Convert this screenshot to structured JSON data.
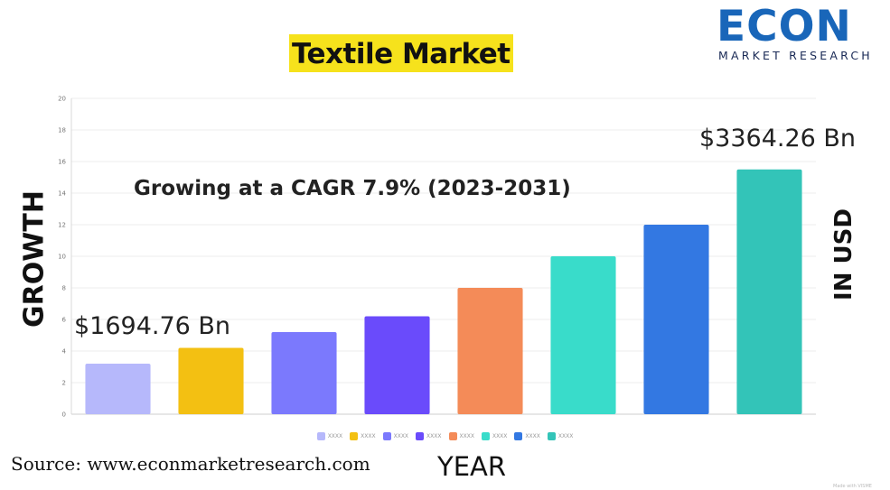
{
  "header": {
    "title": "Textile Market",
    "logo_word": "ECON",
    "logo_sub": "MARKET RESEARCH"
  },
  "chart_data": {
    "type": "bar",
    "title": "Textile Market",
    "subtitle": "Growing at a CAGR 7.9% (2023-2031)",
    "ylabel": "GROWTH",
    "y2label": "IN USD",
    "xlabel": "YEAR",
    "ylim": [
      0,
      20
    ],
    "yticks": [
      0,
      2,
      4,
      6,
      8,
      10,
      12,
      14,
      16,
      18,
      20
    ],
    "grid": true,
    "categories": [
      "XXXX",
      "XXXX",
      "XXXX",
      "XXXX",
      "XXXX",
      "XXXX",
      "XXXX",
      "XXXX"
    ],
    "values": [
      3.2,
      4.2,
      5.2,
      6.2,
      8.0,
      10.0,
      12.0,
      15.5
    ],
    "colors": [
      "#b6b8fb",
      "#f3c012",
      "#7b79fd",
      "#6a4bfb",
      "#f48b58",
      "#39dcca",
      "#3378e2",
      "#33c4b8"
    ],
    "annotations": [
      {
        "text": "$1694.76 Bn",
        "position": "above first bar"
      },
      {
        "text": "$3364.26 Bn",
        "position": "above last bar"
      }
    ],
    "legend_position": "bottom-center"
  },
  "footer": {
    "source": "Source: www.econmarketresearch.com",
    "watermark": "Made with VISME"
  },
  "colors": {
    "title_highlight": "#f6e21c",
    "logo_blue": "#1966b9",
    "logo_navy": "#1a2a56"
  }
}
